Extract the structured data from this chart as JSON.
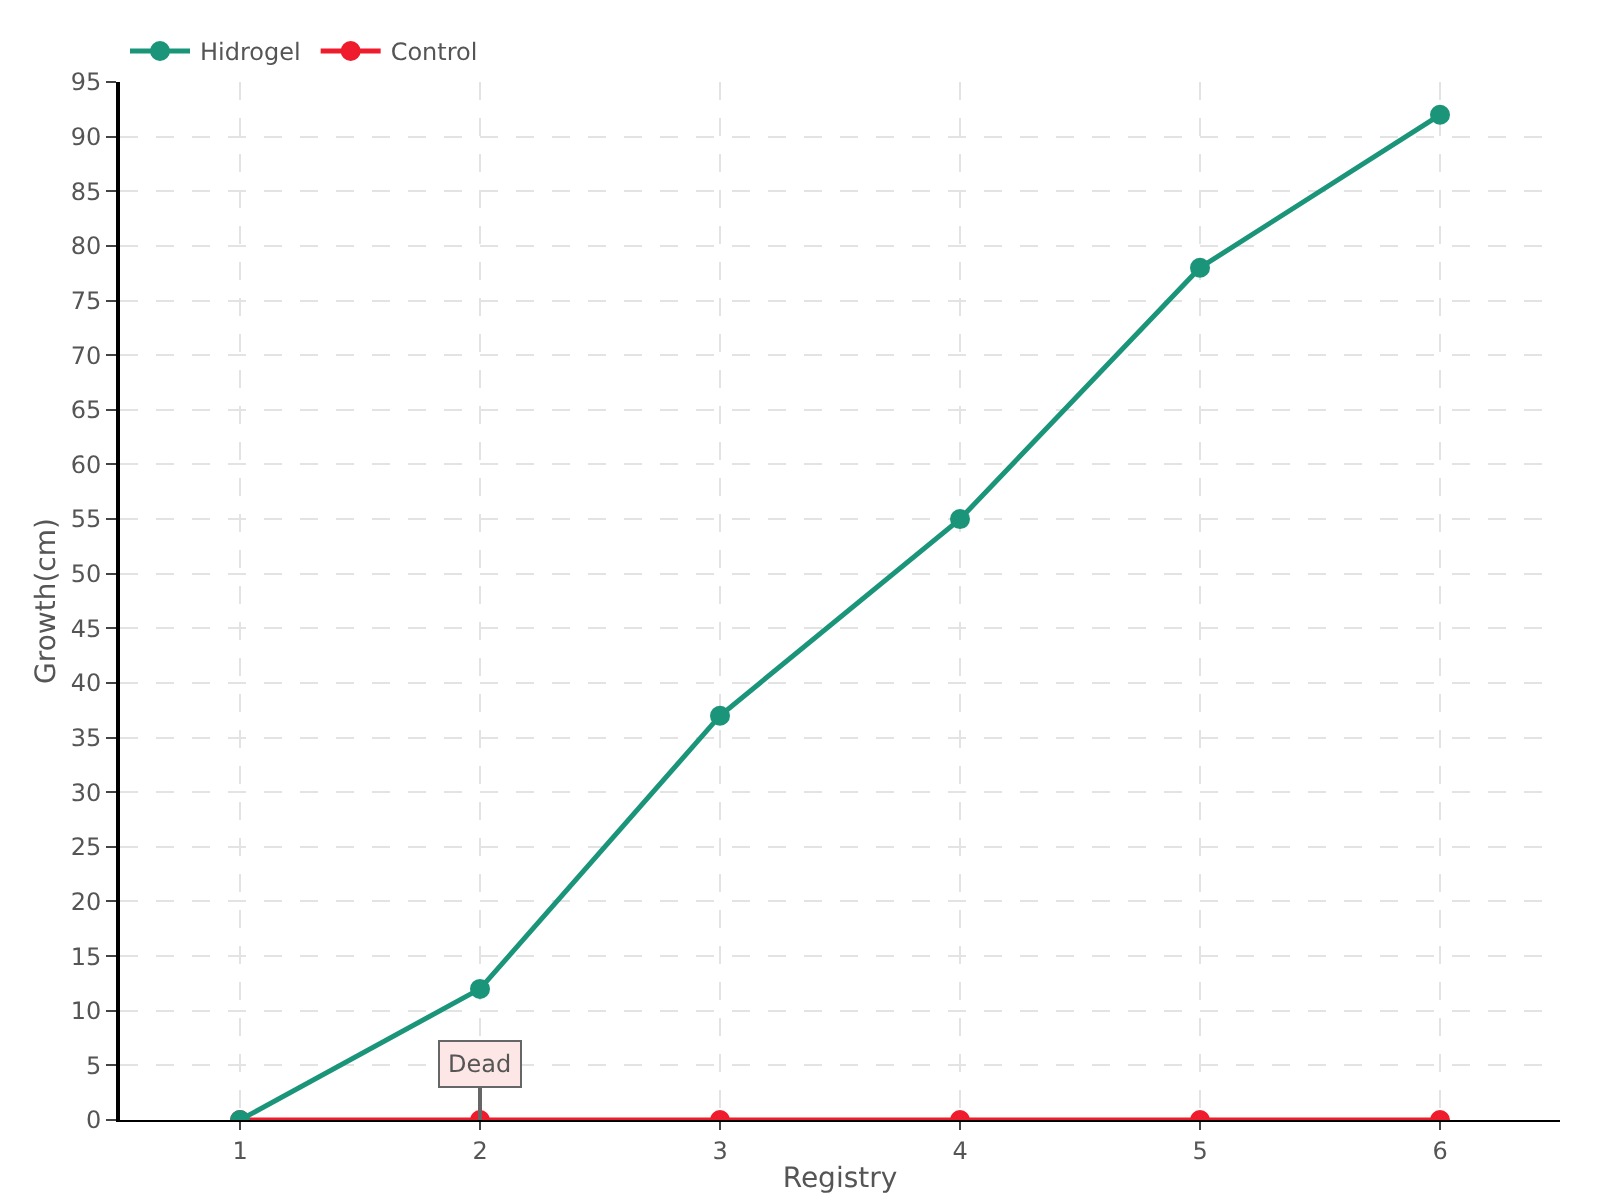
{
  "chart_data": {
    "type": "line",
    "xlabel": "Registry",
    "ylabel": "Growth(cm)",
    "categories": [
      "1",
      "2",
      "3",
      "4",
      "5",
      "6"
    ],
    "series": [
      {
        "name": "Hidrogel",
        "color": "#1b9579",
        "values": [
          0,
          12,
          37,
          55,
          78,
          92
        ]
      },
      {
        "name": "Control",
        "color": "#ee1c2c",
        "values": [
          0,
          0,
          0,
          0,
          0,
          0
        ]
      }
    ],
    "ylim": [
      0,
      95
    ],
    "yticks": [
      0,
      5,
      10,
      15,
      20,
      25,
      30,
      35,
      40,
      45,
      50,
      55,
      60,
      65,
      70,
      75,
      80,
      85,
      90,
      95
    ],
    "grid": true,
    "legend": "top left",
    "marker": "circle",
    "line_style": "solid",
    "annotations": [
      {
        "text": "Dead",
        "x": "2",
        "y": 0
      }
    ]
  }
}
